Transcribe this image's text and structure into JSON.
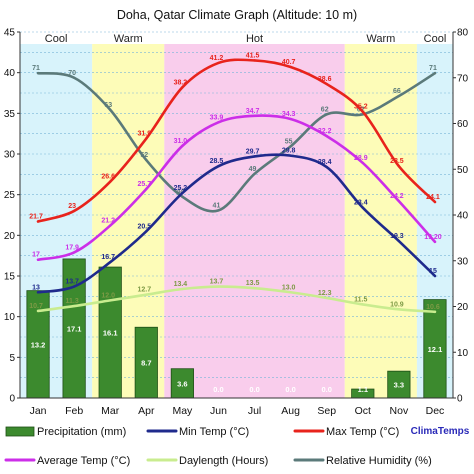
{
  "chart_data": {
    "type": "bar+line",
    "title": "Doha, Qatar Climate Graph (Altitude: 10 m)",
    "categories": [
      "Jan",
      "Feb",
      "Mar",
      "Apr",
      "May",
      "Jun",
      "Jul",
      "Aug",
      "Sep",
      "Oct",
      "Nov",
      "Dec"
    ],
    "left_axis": {
      "ylim": [
        0,
        45
      ],
      "ticks": [
        "0",
        "5",
        "10",
        "15",
        "20",
        "25",
        "30",
        "35",
        "40",
        "45"
      ]
    },
    "right_axis": {
      "ylim": [
        0,
        80
      ],
      "ticks": [
        "0",
        "10",
        "20",
        "30",
        "40",
        "50",
        "60",
        "70",
        "80"
      ]
    },
    "seasons": [
      {
        "label": "Cool",
        "from": 0,
        "to": 2,
        "color": "#d8f3fb"
      },
      {
        "label": "Warm",
        "from": 2,
        "to": 4,
        "color": "#fdfcb8"
      },
      {
        "label": "Hot",
        "from": 4,
        "to": 9,
        "color": "#f9cdec"
      },
      {
        "label": "Warm",
        "from": 9,
        "to": 11,
        "color": "#fdfcb8"
      },
      {
        "label": "Cool",
        "from": 11,
        "to": 12,
        "color": "#d8f3fb"
      }
    ],
    "precipitation": {
      "name": "Precipitation (mm)",
      "color": "#3c8a2e",
      "values": [
        13.2,
        17.1,
        16.1,
        8.7,
        3.6,
        0.0,
        0.0,
        0.0,
        0.0,
        1.1,
        3.3,
        12.1
      ],
      "labels": [
        "13.2",
        "17.1",
        "16.1",
        "8.7",
        "3.6",
        "0.0",
        "0.0",
        "0.0",
        "0.0",
        "1.1",
        "3.3",
        "12.1"
      ]
    },
    "series": [
      {
        "name": "Max Temp (°C)",
        "color": "#e8231c",
        "axis": "left",
        "values": [
          21.7,
          23.0,
          26.6,
          31.9,
          38.2,
          41.2,
          41.5,
          40.7,
          38.6,
          35.2,
          28.5,
          24.1
        ],
        "labels": [
          "21.7",
          "23",
          "26.6",
          "31.9",
          "38.2",
          "41.2",
          "41.5",
          "40.7",
          "38.6",
          "35.2",
          "28.5",
          "24.1"
        ]
      },
      {
        "name": "Average Temp (°C)",
        "color": "#cc2ee8",
        "axis": "left",
        "values": [
          17.0,
          17.9,
          21.2,
          25.7,
          31.0,
          33.9,
          34.7,
          34.3,
          32.2,
          28.9,
          24.2,
          19.2
        ],
        "labels": [
          "17",
          "17.9",
          "21.2",
          "25.7",
          "31.0",
          "33.9",
          "34.7",
          "34.3",
          "32.2",
          "28.9",
          "24.2",
          "19.20"
        ]
      },
      {
        "name": "Min Temp (°C)",
        "color": "#1f2a8c",
        "axis": "left",
        "values": [
          13.0,
          13.7,
          16.7,
          20.5,
          25.2,
          28.5,
          29.7,
          29.8,
          28.4,
          23.4,
          19.3,
          15.0
        ],
        "labels": [
          "13",
          "13.7",
          "16.7",
          "20.5",
          "25.2",
          "28.5",
          "29.7",
          "29.8",
          "28.4",
          "23.4",
          "19.3",
          "15"
        ]
      },
      {
        "name": "Daylength (Hours)",
        "color": "#c9ec8f",
        "axis": "left",
        "values": [
          10.7,
          11.3,
          12.0,
          12.7,
          13.4,
          13.7,
          13.5,
          13.0,
          12.3,
          11.5,
          10.9,
          10.6
        ],
        "labels": [
          "10.7",
          "11.3",
          "12.0",
          "12.7",
          "13.4",
          "13.7",
          "13.5",
          "13.0",
          "12.3",
          "11.5",
          "10.9",
          "10.6"
        ]
      },
      {
        "name": "Relative Humidity (%)",
        "color": "#5b7a7a",
        "axis": "right",
        "values": [
          71,
          70,
          63,
          52,
          44,
          41,
          49,
          55,
          62,
          62,
          66,
          71
        ],
        "labels": [
          "71",
          "70",
          "63",
          "52",
          "44",
          "41",
          "49",
          "55",
          "62",
          "62",
          "66",
          "71"
        ]
      }
    ],
    "legend": [
      {
        "label": "Precipitation (mm)",
        "color": "#3c8a2e",
        "kind": "bar"
      },
      {
        "label": "Min Temp (°C)",
        "color": "#1f2a8c",
        "kind": "line"
      },
      {
        "label": "Max Temp (°C)",
        "color": "#e8231c",
        "kind": "line"
      },
      {
        "label": "Average Temp (°C)",
        "color": "#cc2ee8",
        "kind": "line"
      },
      {
        "label": "Daylength (Hours)",
        "color": "#c9ec8f",
        "kind": "line"
      },
      {
        "label": "Relative Humidity (%)",
        "color": "#5b7a7a",
        "kind": "line"
      }
    ],
    "brand": "ClimaTemps",
    "legend_position": "bottom",
    "grid": true
  }
}
